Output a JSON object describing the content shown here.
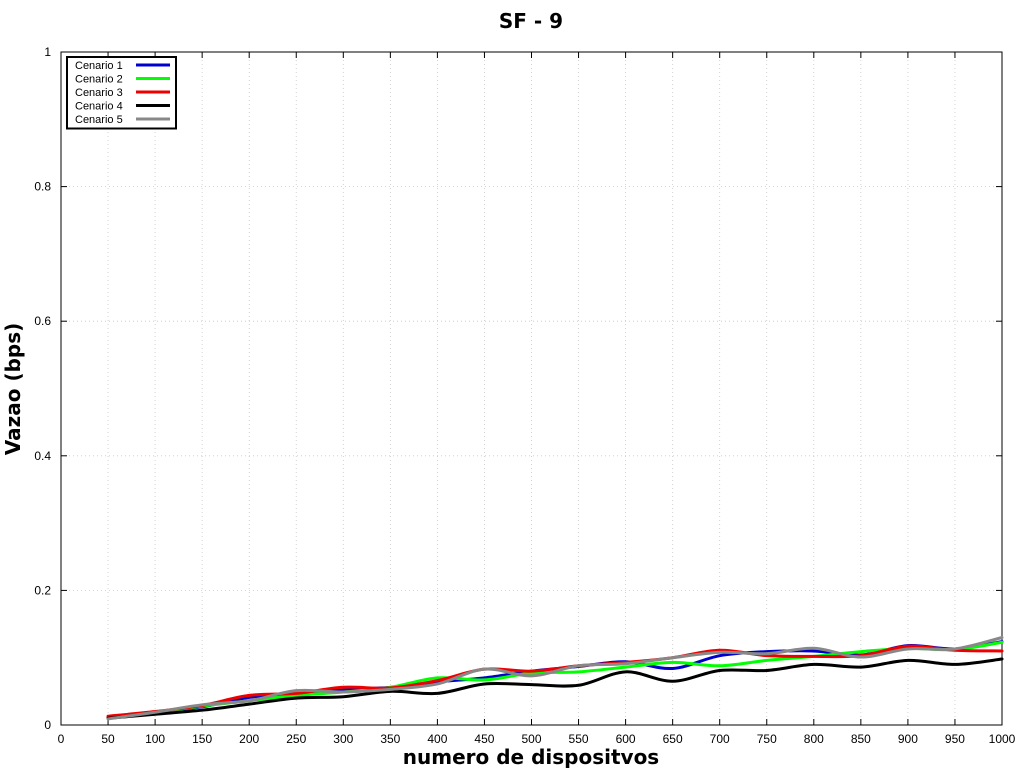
{
  "chart_data": {
    "type": "line",
    "title": "SF - 9",
    "xlabel": "numero de dispositvos",
    "ylabel": "Vazao (bps)",
    "xlim": [
      0,
      1000
    ],
    "ylim": [
      0,
      1
    ],
    "xticks": [
      0,
      50,
      100,
      150,
      200,
      250,
      300,
      350,
      400,
      450,
      500,
      550,
      600,
      650,
      700,
      750,
      800,
      850,
      900,
      950,
      1000
    ],
    "yticks": [
      0,
      0.2,
      0.4,
      0.6,
      0.8,
      1
    ],
    "ytick_labels": [
      "0",
      "0.2",
      "0.4",
      "0.6",
      "0.8",
      "1"
    ],
    "grid": true,
    "legend_position": "top-left",
    "x": [
      50,
      100,
      150,
      200,
      250,
      300,
      350,
      400,
      450,
      500,
      550,
      600,
      650,
      700,
      750,
      800,
      850,
      900,
      950,
      1000
    ],
    "series": [
      {
        "name": "Cenario 1",
        "color": "#0000cc",
        "values": [
          0.011,
          0.019,
          0.027,
          0.041,
          0.047,
          0.052,
          0.056,
          0.064,
          0.07,
          0.08,
          0.087,
          0.094,
          0.084,
          0.103,
          0.109,
          0.11,
          0.104,
          0.118,
          0.113,
          0.124
        ]
      },
      {
        "name": "Cenario 2",
        "color": "#00ff00",
        "values": [
          0.01,
          0.018,
          0.028,
          0.036,
          0.044,
          0.049,
          0.056,
          0.07,
          0.067,
          0.077,
          0.079,
          0.086,
          0.093,
          0.088,
          0.096,
          0.102,
          0.109,
          0.114,
          0.112,
          0.123
        ]
      },
      {
        "name": "Cenario 3",
        "color": "#ee0000",
        "values": [
          0.013,
          0.02,
          0.029,
          0.044,
          0.047,
          0.056,
          0.055,
          0.066,
          0.083,
          0.08,
          0.088,
          0.093,
          0.1,
          0.111,
          0.103,
          0.102,
          0.103,
          0.117,
          0.111,
          0.11
        ]
      },
      {
        "name": "Cenario 4",
        "color": "#000000",
        "values": [
          0.01,
          0.016,
          0.022,
          0.031,
          0.04,
          0.042,
          0.05,
          0.047,
          0.061,
          0.06,
          0.059,
          0.079,
          0.065,
          0.081,
          0.081,
          0.09,
          0.086,
          0.096,
          0.09,
          0.098
        ]
      },
      {
        "name": "Cenario 5",
        "color": "#888888",
        "values": [
          0.009,
          0.019,
          0.03,
          0.036,
          0.051,
          0.049,
          0.053,
          0.061,
          0.083,
          0.073,
          0.088,
          0.091,
          0.1,
          0.108,
          0.106,
          0.114,
          0.101,
          0.113,
          0.113,
          0.13
        ]
      }
    ]
  }
}
